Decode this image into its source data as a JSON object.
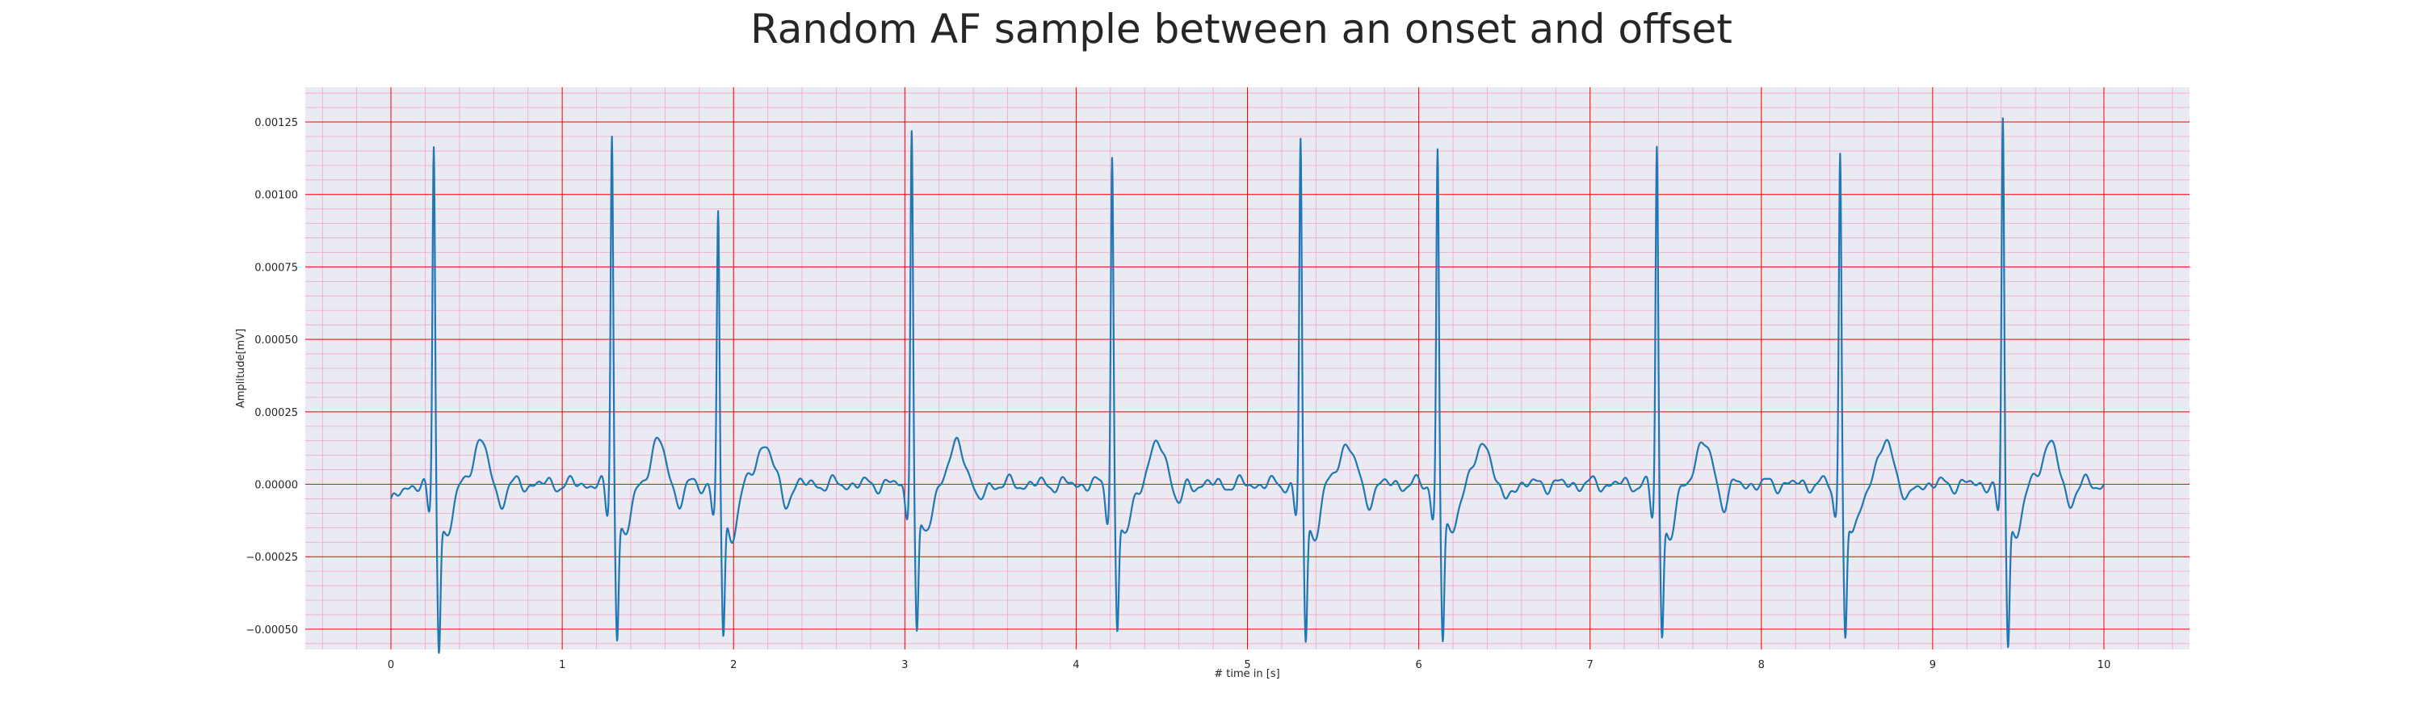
{
  "chart_data": {
    "type": "line",
    "title": "Random AF sample between an onset and offset",
    "xlabel": "# time in [s]",
    "ylabel": "Amplitude[mV]",
    "xlim": [
      -0.5,
      10.5
    ],
    "ylim": [
      -0.00057,
      0.00137
    ],
    "x_ticks": [
      0,
      1,
      2,
      3,
      4,
      5,
      6,
      7,
      8,
      9,
      10
    ],
    "y_ticks": [
      -0.0005,
      -0.00025,
      0.0,
      0.00025,
      0.0005,
      0.00075,
      0.001,
      0.00125
    ],
    "x_tick_labels": [
      "0",
      "1",
      "2",
      "3",
      "4",
      "5",
      "6",
      "7",
      "8",
      "9",
      "10"
    ],
    "y_tick_labels": [
      "−0.00050",
      "−0.00025",
      "0.00000",
      "0.00025",
      "0.00050",
      "0.00075",
      "0.00100",
      "0.00125"
    ],
    "grid": true,
    "minor_grid": true,
    "colors": {
      "line": "#1f77b4",
      "major_grid": "#ff0000",
      "minor_grid": "#f2a6c4",
      "plot_bg": "#eaeaf2",
      "text": "#262626"
    },
    "series": [
      {
        "beats": [
          {
            "t": 0.25,
            "r": 0.00119,
            "s": -0.00048
          },
          {
            "t": 1.29,
            "r": 0.00124,
            "s": -0.00044
          },
          {
            "t": 1.91,
            "r": 0.00096,
            "s": -0.00045
          },
          {
            "t": 3.04,
            "r": 0.00127,
            "s": -0.00044
          },
          {
            "t": 4.21,
            "r": 0.00116,
            "s": -0.00043
          },
          {
            "t": 5.31,
            "r": 0.00121,
            "s": -0.00047
          },
          {
            "t": 6.11,
            "r": 0.00118,
            "s": -0.00046
          },
          {
            "t": 7.39,
            "r": 0.00119,
            "s": -0.00044
          },
          {
            "t": 8.46,
            "r": 0.00118,
            "s": -0.00045
          },
          {
            "t": 9.41,
            "r": 0.00128,
            "s": -0.00046
          }
        ],
        "x_start": 0,
        "x_end": 10,
        "start_value": -5e-05
      }
    ]
  }
}
